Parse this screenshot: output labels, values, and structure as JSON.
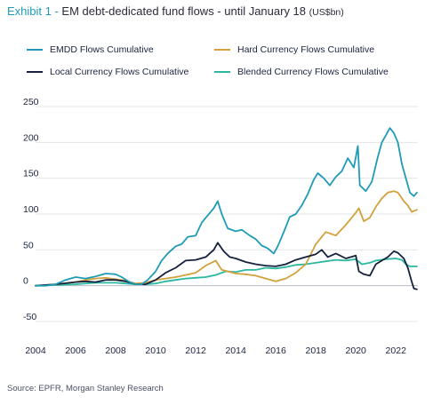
{
  "header": {
    "exhibit": "Exhibit 1 - ",
    "title": "EM debt-dedicated fund flows - until January 18",
    "unit": "(US$bn)"
  },
  "footer": {
    "source": "Source: EPFR, Morgan Stanley Research"
  },
  "colors": {
    "emdd": "#1f9bb6",
    "hard": "#d2a03c",
    "local": "#15213d",
    "blended": "#2bb8a0",
    "grid": "#e2e4e8",
    "zero": "#b9bcc4",
    "tick": "#1c2340"
  },
  "chart_data": {
    "type": "line",
    "title": "EM debt-dedicated fund flows - until January 18",
    "xlabel": "",
    "ylabel": "",
    "xlim": [
      2004,
      2023.1
    ],
    "ylim": [
      -50,
      250
    ],
    "x_ticks": [
      "2004",
      "2006",
      "2008",
      "2010",
      "2012",
      "2014",
      "2016",
      "2018",
      "2020",
      "2022"
    ],
    "y_ticks": [
      "250",
      "200",
      "150",
      "100",
      "50",
      "0",
      "-50"
    ],
    "grid": true,
    "legend_position": "top",
    "series": [
      {
        "name": "EMDD Flows Cumulative",
        "color": "#1f9bb6",
        "x": [
          2004,
          2004.5,
          2005,
          2005.5,
          2006,
          2006.5,
          2007,
          2007.5,
          2008,
          2008.3,
          2008.7,
          2009,
          2009.3,
          2009.6,
          2010,
          2010.3,
          2010.6,
          2011,
          2011.3,
          2011.6,
          2012,
          2012.3,
          2012.6,
          2012.9,
          2013.1,
          2013.3,
          2013.6,
          2014,
          2014.3,
          2014.7,
          2015,
          2015.3,
          2015.6,
          2015.9,
          2016.1,
          2016.4,
          2016.7,
          2017,
          2017.3,
          2017.6,
          2017.9,
          2018.1,
          2018.4,
          2018.7,
          2019,
          2019.3,
          2019.6,
          2019.9,
          2020.1,
          2020.2,
          2020.5,
          2020.8,
          2021.1,
          2021.3,
          2021.5,
          2021.7,
          2021.9,
          2022.1,
          2022.3,
          2022.5,
          2022.7,
          2022.9,
          2023.05
        ],
        "y": [
          0,
          0,
          2,
          8,
          12,
          10,
          13,
          17,
          16,
          12,
          5,
          2,
          2,
          8,
          20,
          35,
          45,
          55,
          58,
          68,
          70,
          88,
          98,
          108,
          118,
          100,
          80,
          76,
          78,
          70,
          65,
          56,
          52,
          45,
          55,
          75,
          96,
          100,
          112,
          128,
          148,
          157,
          150,
          140,
          152,
          160,
          178,
          165,
          195,
          140,
          132,
          145,
          180,
          200,
          210,
          220,
          213,
          200,
          170,
          150,
          130,
          125,
          130
        ]
      },
      {
        "name": "Hard Currency Flows Cumulative",
        "color": "#d2a03c",
        "x": [
          2004,
          2005,
          2006,
          2006.5,
          2007,
          2007.5,
          2008,
          2008.5,
          2009,
          2009.5,
          2010,
          2010.5,
          2011,
          2011.5,
          2012,
          2012.5,
          2013,
          2013.3,
          2013.6,
          2014,
          2014.5,
          2015,
          2015.5,
          2016,
          2016.5,
          2017,
          2017.5,
          2018,
          2018.5,
          2019,
          2019.5,
          2020,
          2020.15,
          2020.4,
          2020.7,
          2021,
          2021.3,
          2021.6,
          2021.9,
          2022.1,
          2022.4,
          2022.6,
          2022.8,
          2023.05
        ],
        "y": [
          0,
          2,
          5,
          8,
          10,
          11,
          9,
          7,
          3,
          4,
          8,
          10,
          12,
          15,
          18,
          28,
          35,
          22,
          20,
          17,
          16,
          14,
          10,
          6,
          10,
          18,
          30,
          58,
          75,
          70,
          85,
          102,
          108,
          90,
          95,
          110,
          122,
          130,
          132,
          130,
          118,
          112,
          103,
          106
        ]
      },
      {
        "name": "Local Currency Flows Cumulative",
        "color": "#15213d",
        "x": [
          2004,
          2005,
          2006,
          2006.5,
          2007,
          2007.5,
          2008,
          2008.5,
          2009,
          2009.5,
          2010,
          2010.5,
          2011,
          2011.5,
          2012,
          2012.5,
          2012.9,
          2013.1,
          2013.4,
          2013.7,
          2014,
          2014.5,
          2015,
          2015.5,
          2016,
          2016.5,
          2017,
          2017.5,
          2018,
          2018.3,
          2018.6,
          2019,
          2019.5,
          2020,
          2020.15,
          2020.4,
          2020.7,
          2021,
          2021.3,
          2021.6,
          2021.9,
          2022.1,
          2022.4,
          2022.6,
          2022.8,
          2022.9,
          2023.05
        ],
        "y": [
          0,
          2,
          5,
          6,
          5,
          8,
          8,
          6,
          2,
          2,
          8,
          18,
          25,
          35,
          36,
          40,
          50,
          60,
          48,
          40,
          38,
          33,
          30,
          28,
          27,
          30,
          36,
          40,
          44,
          50,
          40,
          45,
          38,
          42,
          20,
          16,
          14,
          30,
          35,
          40,
          48,
          46,
          38,
          25,
          5,
          -4,
          -5
        ]
      },
      {
        "name": "Blended Currency Flows Cumulative",
        "color": "#2bb8a0",
        "x": [
          2004,
          2005,
          2006,
          2007,
          2008,
          2008.5,
          2009,
          2009.5,
          2010,
          2010.5,
          2011,
          2011.5,
          2012,
          2012.5,
          2013,
          2013.5,
          2014,
          2014.5,
          2015,
          2015.5,
          2016,
          2016.5,
          2017,
          2017.5,
          2018,
          2018.5,
          2019,
          2019.5,
          2020,
          2020.3,
          2020.7,
          2021,
          2021.5,
          2022,
          2022.3,
          2022.5,
          2022.7,
          2023.05
        ],
        "y": [
          0,
          1,
          2,
          4,
          4,
          3,
          2,
          2,
          3,
          6,
          8,
          10,
          11,
          12,
          15,
          20,
          19,
          22,
          22,
          25,
          24,
          26,
          29,
          30,
          32,
          34,
          36,
          35,
          37,
          30,
          32,
          35,
          37,
          38,
          36,
          30,
          27,
          27
        ]
      }
    ]
  }
}
